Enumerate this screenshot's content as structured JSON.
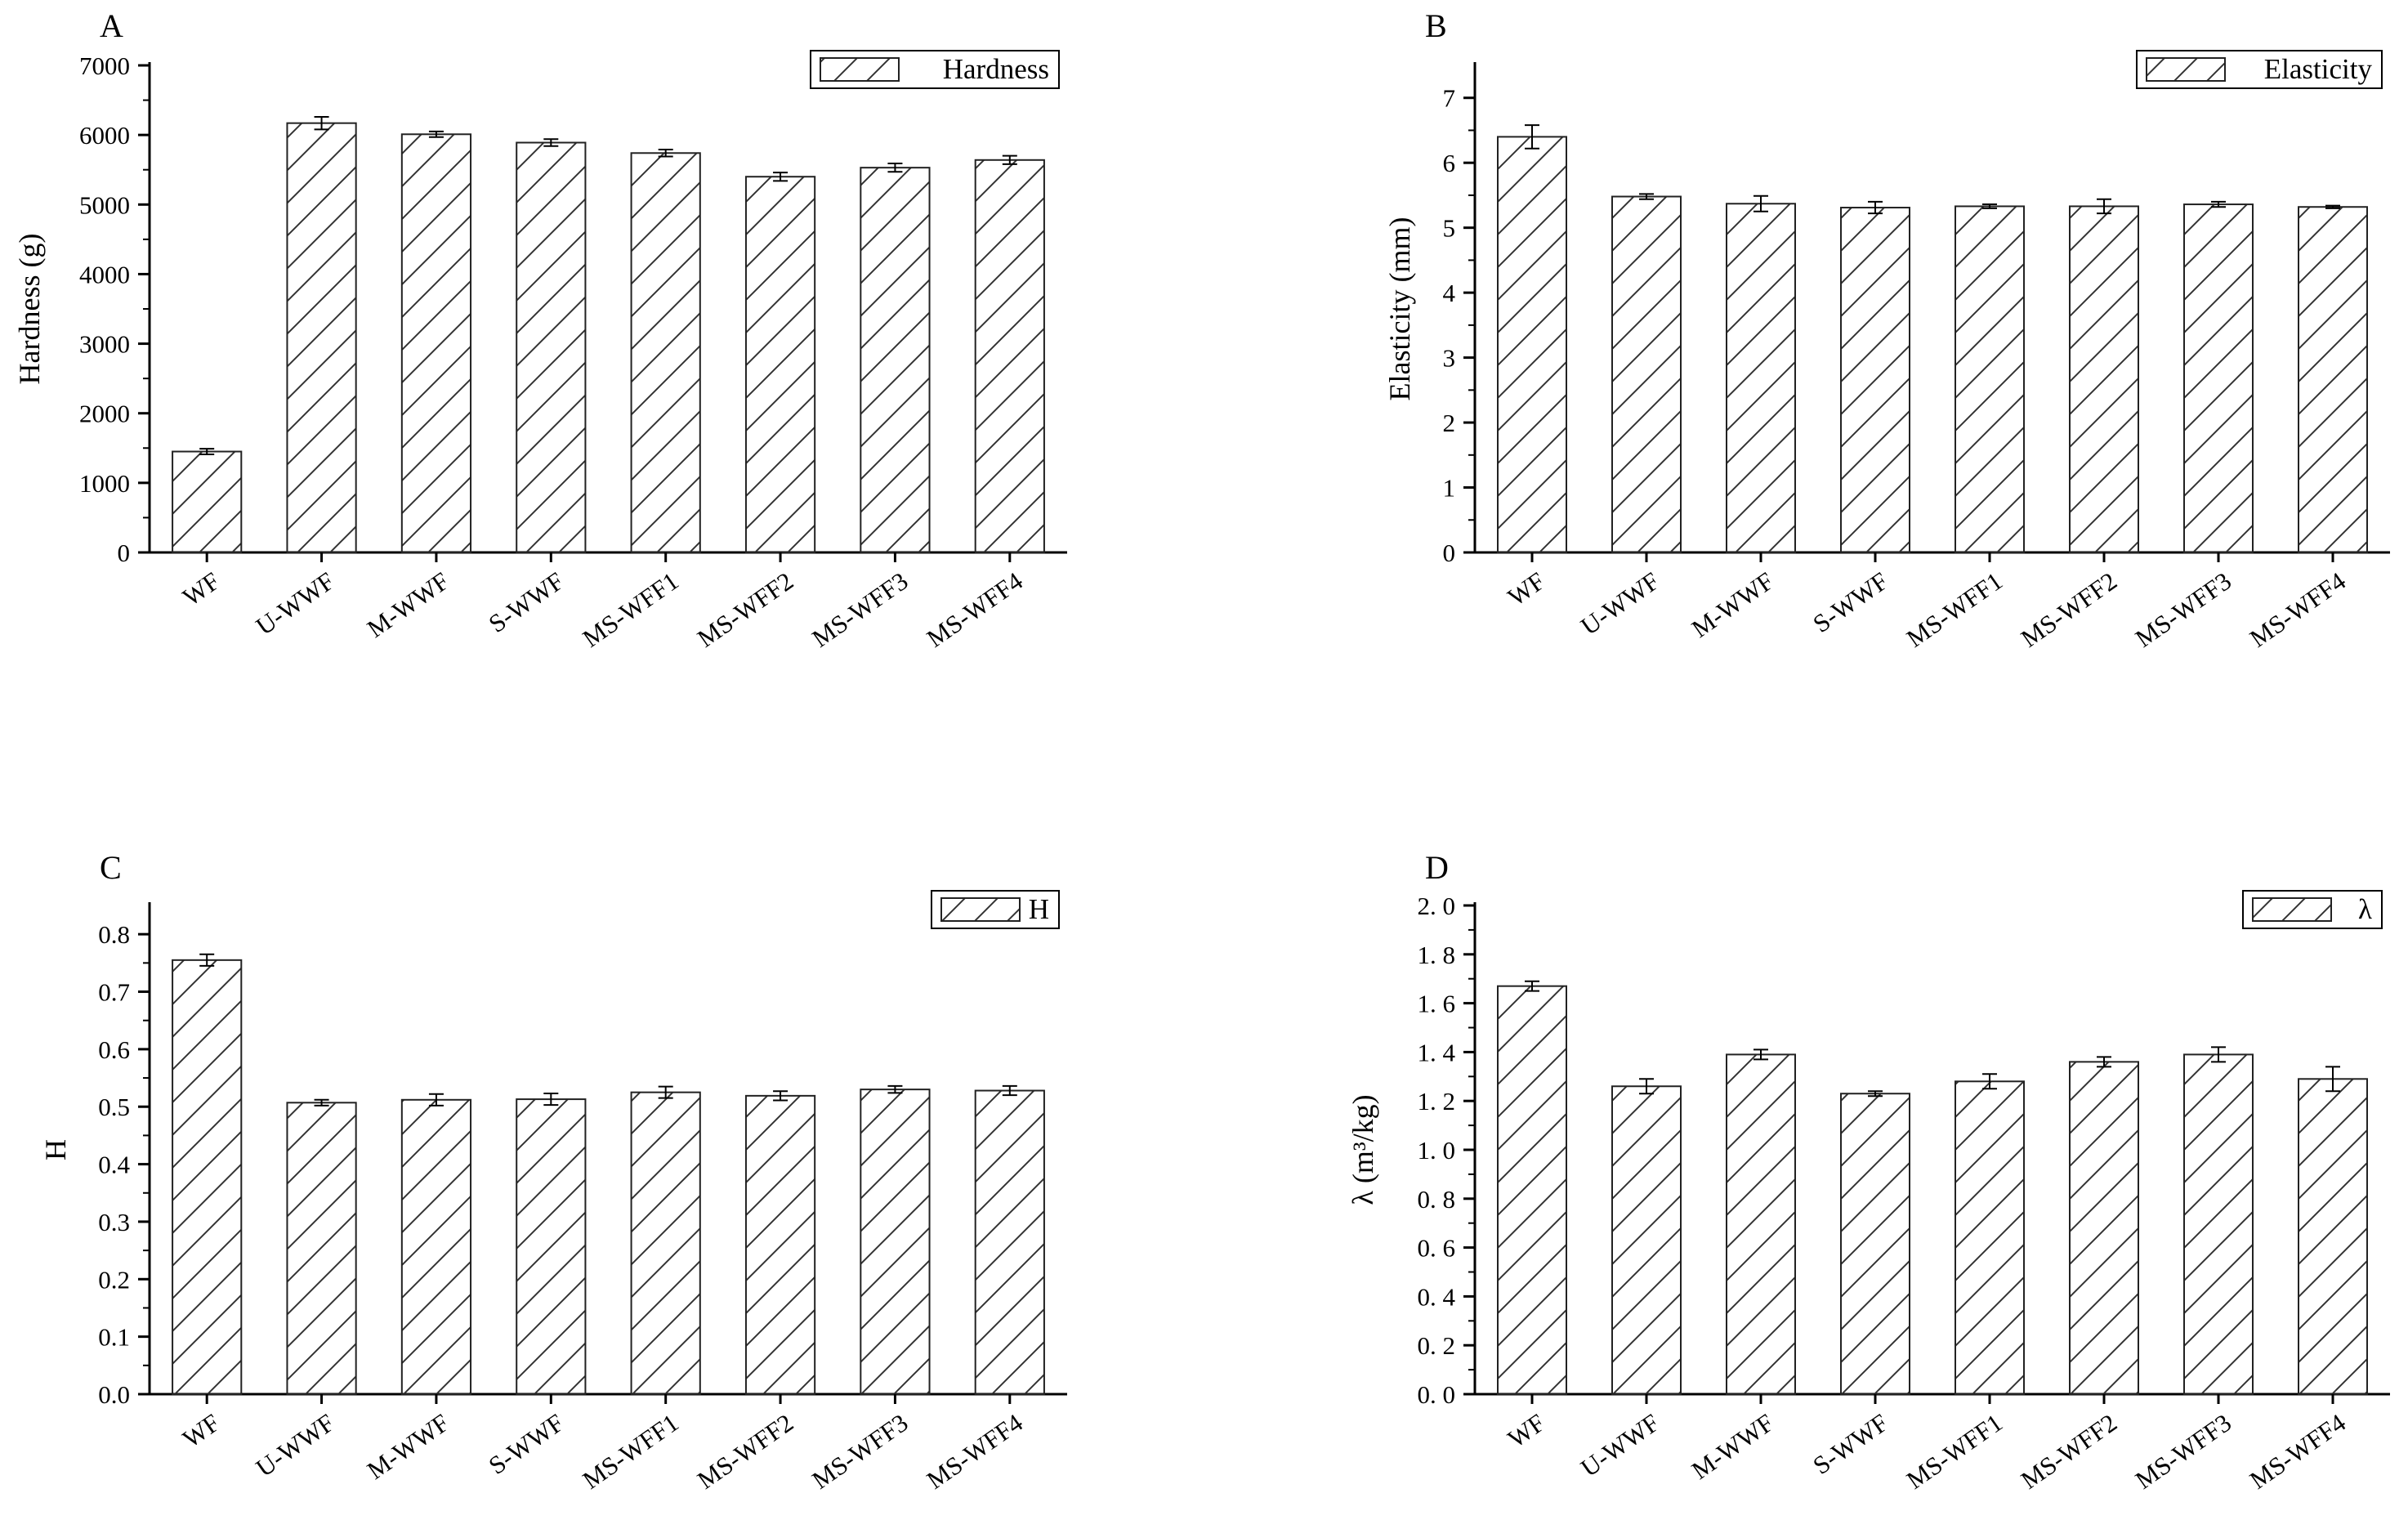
{
  "chart_data": [
    {
      "panel_label": "A",
      "type": "bar",
      "ylabel": "Hardness (g)",
      "ylim": [
        0,
        7000
      ],
      "yticks": [
        0,
        1000,
        2000,
        3000,
        4000,
        5000,
        6000,
        7000
      ],
      "ytick_labels": [
        "0",
        "1000",
        "2000",
        "3000",
        "4000",
        "5000",
        "6000",
        "7000"
      ],
      "categories": [
        "WF",
        "U-WWF",
        "M-WWF",
        "S-WWF",
        "MS-WFF1",
        "MS-WFF2",
        "MS-WFF3",
        "MS-WFF4"
      ],
      "series": [
        {
          "name": "Hardness",
          "values": [
            1450,
            6170,
            6010,
            5890,
            5740,
            5400,
            5530,
            5640
          ],
          "errors": [
            40,
            90,
            40,
            50,
            50,
            60,
            60,
            60
          ]
        }
      ],
      "legend_position": "top-right",
      "bar_fill": "hatched"
    },
    {
      "panel_label": "B",
      "type": "bar",
      "ylabel": "Elasticity (mm)",
      "ylim": [
        0,
        7.5
      ],
      "yticks": [
        0,
        1,
        2,
        3,
        4,
        5,
        6,
        7
      ],
      "ytick_labels": [
        "0",
        "1",
        "2",
        "3",
        "4",
        "5",
        "6",
        "7"
      ],
      "categories": [
        "WF",
        "U-WWF",
        "M-WWF",
        "S-WWF",
        "MS-WFF1",
        "MS-WFF2",
        "MS-WFF3",
        "MS-WFF4"
      ],
      "series": [
        {
          "name": "Elasticity",
          "values": [
            6.4,
            5.48,
            5.37,
            5.31,
            5.33,
            5.33,
            5.36,
            5.32
          ],
          "errors": [
            0.18,
            0.04,
            0.12,
            0.09,
            0.03,
            0.11,
            0.04,
            0.02
          ]
        }
      ],
      "legend_position": "top-right",
      "bar_fill": "hatched"
    },
    {
      "panel_label": "C",
      "type": "bar",
      "ylabel": "H",
      "ylim": [
        0,
        0.85
      ],
      "yticks": [
        0,
        0.1,
        0.2,
        0.3,
        0.4,
        0.5,
        0.6,
        0.7,
        0.8
      ],
      "ytick_labels": [
        "0.0",
        "0.1",
        "0.2",
        "0.3",
        "0.4",
        "0.5",
        "0.6",
        "0.7",
        "0.8"
      ],
      "categories": [
        "WF",
        "U-WWF",
        "M-WWF",
        "S-WWF",
        "MS-WFF1",
        "MS-WFF2",
        "MS-WFF3",
        "MS-WFF4"
      ],
      "series": [
        {
          "name": "H",
          "values": [
            0.755,
            0.507,
            0.512,
            0.513,
            0.525,
            0.519,
            0.53,
            0.528
          ],
          "errors": [
            0.01,
            0.005,
            0.01,
            0.01,
            0.01,
            0.008,
            0.006,
            0.008
          ]
        }
      ],
      "legend_position": "top-right",
      "bar_fill": "hatched"
    },
    {
      "panel_label": "D",
      "type": "bar",
      "ylabel": "λ (m³/kg)",
      "ylim": [
        0,
        2.0
      ],
      "yticks": [
        0,
        0.2,
        0.4,
        0.6,
        0.8,
        1.0,
        1.2,
        1.4,
        1.6,
        1.8,
        2.0
      ],
      "ytick_labels": [
        "0. 0",
        "0. 2",
        "0. 4",
        "0. 6",
        "0. 8",
        "1. 0",
        "1. 2",
        "1. 4",
        "1. 6",
        "1. 8",
        "2. 0"
      ],
      "categories": [
        "WF",
        "U-WWF",
        "M-WWF",
        "S-WWF",
        "MS-WFF1",
        "MS-WFF2",
        "MS-WFF3",
        "MS-WFF4"
      ],
      "series": [
        {
          "name": "λ",
          "values": [
            1.67,
            1.26,
            1.39,
            1.23,
            1.28,
            1.36,
            1.39,
            1.29
          ],
          "errors": [
            0.02,
            0.03,
            0.02,
            0.01,
            0.03,
            0.02,
            0.03,
            0.05
          ]
        }
      ],
      "legend_position": "top-right",
      "bar_fill": "hatched"
    }
  ],
  "colors": {
    "bar_fill": "#ffffff",
    "bar_stroke": "#222222",
    "hatch": "#333333",
    "axis": "#000000"
  }
}
